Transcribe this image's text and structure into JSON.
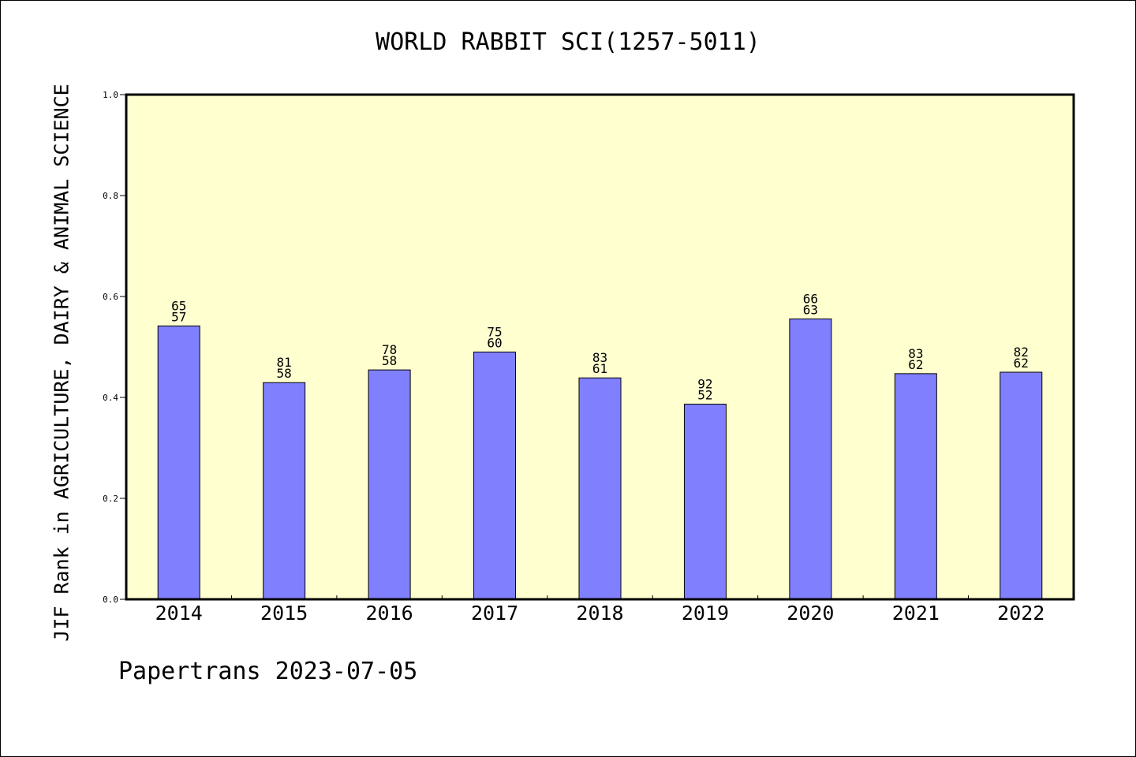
{
  "chart_data": {
    "type": "bar",
    "title": "WORLD RABBIT SCI(1257-5011)",
    "xlabel": "",
    "ylabel": "JIF Rank in AGRICULTURE, DAIRY & ANIMAL SCIENCE",
    "categories": [
      "2014",
      "2015",
      "2016",
      "2017",
      "2018",
      "2019",
      "2020",
      "2021",
      "2022"
    ],
    "values": [
      0.5417,
      0.4293,
      0.4545,
      0.49,
      0.4387,
      0.3867,
      0.5556,
      0.4471,
      0.45
    ],
    "labels": [
      [
        "65",
        "57"
      ],
      [
        "81",
        "58"
      ],
      [
        "78",
        "58"
      ],
      [
        "75",
        "60"
      ],
      [
        "83",
        "61"
      ],
      [
        "92",
        "52"
      ],
      [
        "66",
        "63"
      ],
      [
        "83",
        "62"
      ],
      [
        "82",
        "62"
      ]
    ],
    "ylim": [
      0,
      1.0
    ],
    "yticks": [
      "0.0",
      "0.2",
      "0.4",
      "0.6",
      "0.8",
      "1.0"
    ],
    "grid": false,
    "legend": "none",
    "colors": {
      "bar_fill": "#8080ff",
      "plot_background": "#ffffd0",
      "axis": "#000000"
    }
  },
  "footer": {
    "credit": "Papertrans 2023-07-05"
  }
}
